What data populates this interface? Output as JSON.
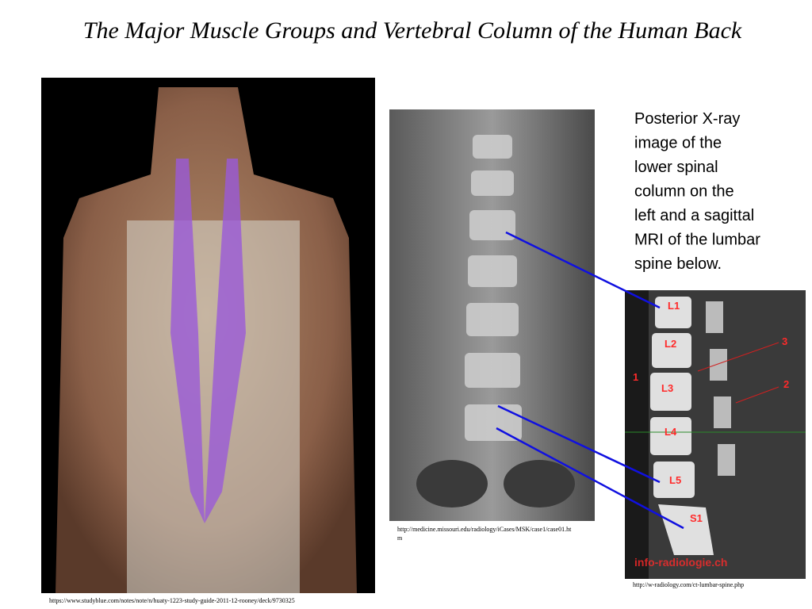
{
  "title": "The Major Muscle Groups and Vertebral Column of the Human Back",
  "description_lines": [
    "Posterior X-ray",
    "image of the",
    "lower spinal",
    "column on the",
    "left and a sagittal",
    "MRI of the lumbar",
    "spine below."
  ],
  "sources": {
    "back": "https://www.studyblue.com/notes/note/n/huaty-1223-study-guide-2011-12-rooney/deck/9730325",
    "xray_lines": [
      "http://medicine.missouri.edu/radiology/iCases/MSK/case1/case01.ht",
      "m"
    ],
    "mri": "http://w-radiology.com/ct-lumbar-spine.php"
  },
  "mri_labels": {
    "vertebrae": [
      "L1",
      "L2",
      "L3",
      "L4",
      "L5",
      "S1"
    ],
    "markers": [
      "1",
      "2",
      "3"
    ],
    "watermark": "info-radiologie.ch"
  }
}
